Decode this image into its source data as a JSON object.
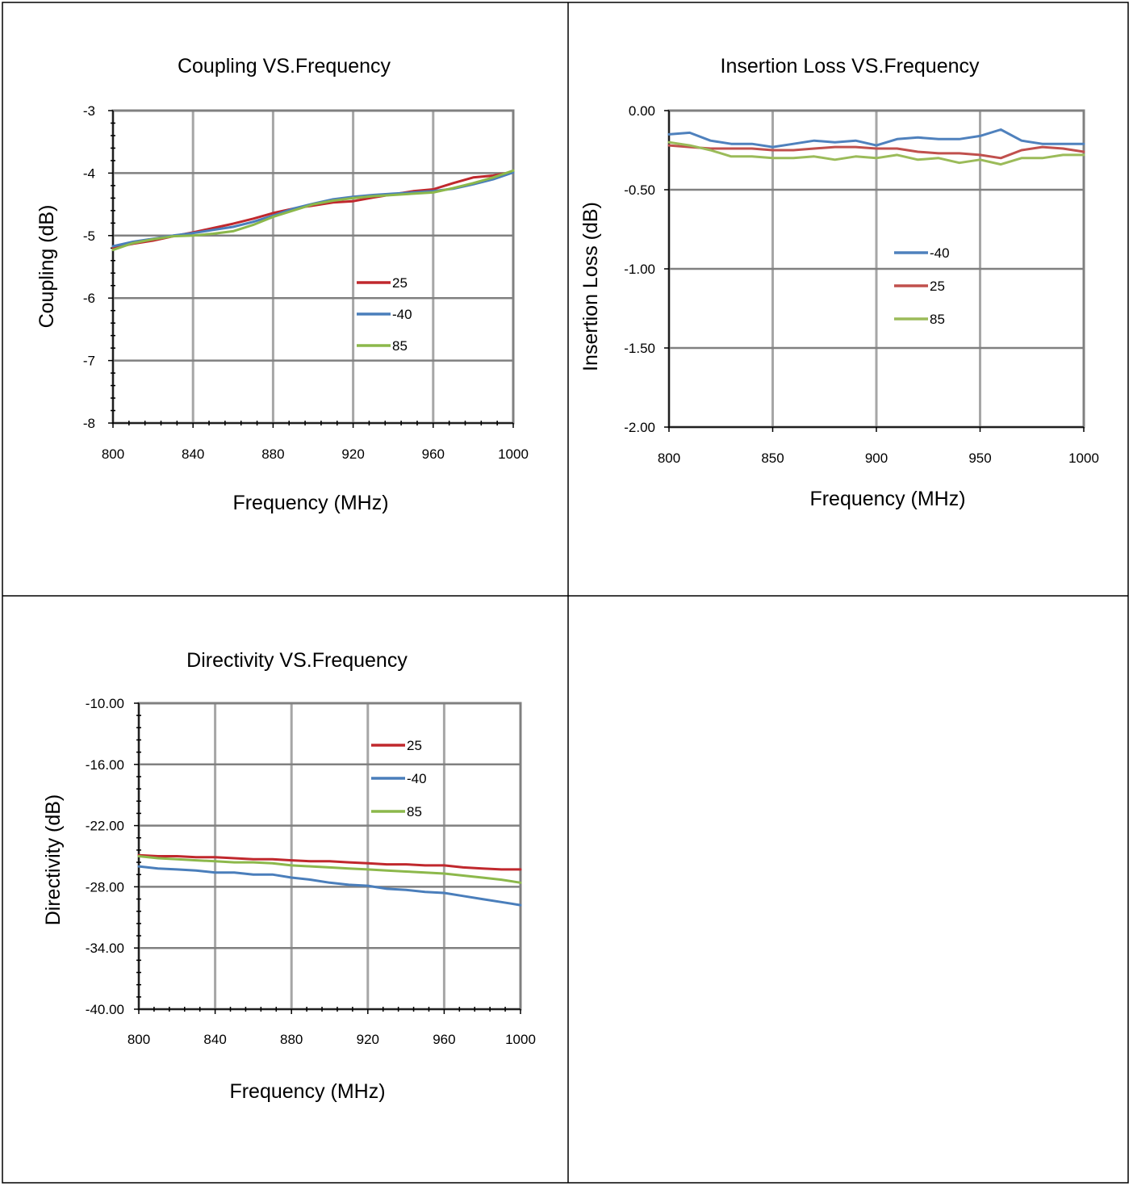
{
  "colors": {
    "red": "#c0282d",
    "blue": "#4a7ebb",
    "green": "#8cb84b",
    "ins_red": "#c0504d",
    "ins_blue": "#4f81bd",
    "ins_green": "#9bbb59"
  },
  "chart_data": [
    {
      "type": "line",
      "title": "Coupling VS.Frequency",
      "xlabel": "Frequency (MHz)",
      "ylabel": "Coupling  (dB)",
      "xlim": [
        800,
        1000
      ],
      "ylim": [
        -8,
        -3
      ],
      "xticks": [
        800,
        840,
        880,
        920,
        960,
        1000
      ],
      "xtick_labels": [
        "800",
        "840",
        "880",
        "920",
        "960",
        "1000"
      ],
      "yticks": [
        -8,
        -7,
        -6,
        -5,
        -4,
        -3
      ],
      "ytick_labels": [
        "-8",
        "-7",
        "-6",
        "-5",
        "-4",
        "-3"
      ],
      "x_grid": true,
      "y_grid": true,
      "legend_position": "center-right",
      "x": [
        800,
        810,
        820,
        830,
        840,
        850,
        860,
        870,
        880,
        890,
        900,
        910,
        920,
        930,
        940,
        950,
        960,
        970,
        980,
        990,
        1000
      ],
      "series": [
        {
          "name": "25",
          "color": "#c0282d",
          "values": [
            -5.2,
            -5.13,
            -5.08,
            -5.01,
            -4.95,
            -4.88,
            -4.81,
            -4.73,
            -4.64,
            -4.57,
            -4.52,
            -4.47,
            -4.45,
            -4.39,
            -4.34,
            -4.29,
            -4.26,
            -4.16,
            -4.07,
            -4.04,
            -3.98
          ]
        },
        {
          "name": "-40",
          "color": "#4a7ebb",
          "values": [
            -5.17,
            -5.1,
            -5.05,
            -5.0,
            -4.96,
            -4.91,
            -4.86,
            -4.78,
            -4.68,
            -4.57,
            -4.49,
            -4.42,
            -4.38,
            -4.35,
            -4.33,
            -4.31,
            -4.29,
            -4.25,
            -4.18,
            -4.1,
            -3.99
          ]
        },
        {
          "name": "85",
          "color": "#8cb84b",
          "values": [
            -5.23,
            -5.12,
            -5.06,
            -5.01,
            -5.0,
            -4.97,
            -4.93,
            -4.83,
            -4.7,
            -4.6,
            -4.5,
            -4.44,
            -4.4,
            -4.37,
            -4.35,
            -4.33,
            -4.31,
            -4.24,
            -4.16,
            -4.07,
            -3.96
          ]
        }
      ],
      "legend_order": [
        "25",
        "-40",
        "85"
      ]
    },
    {
      "type": "line",
      "title": "Insertion Loss VS.Frequency",
      "xlabel": "Frequency (MHz)",
      "ylabel": "Insertion Loss (dB)",
      "xlim": [
        800,
        1000
      ],
      "ylim": [
        -2.0,
        0.0
      ],
      "xticks": [
        800,
        850,
        900,
        950,
        1000
      ],
      "xtick_labels": [
        "800",
        "850",
        "900",
        "950",
        "1000"
      ],
      "yticks": [
        -2.0,
        -1.5,
        -1.0,
        -0.5,
        0.0
      ],
      "ytick_labels": [
        "-2.00",
        "-1.50",
        "-1.00",
        "-0.50",
        "0.00"
      ],
      "x_grid": true,
      "y_grid": true,
      "legend_position": "center-right",
      "x": [
        800,
        810,
        820,
        830,
        840,
        850,
        860,
        870,
        880,
        890,
        900,
        910,
        920,
        930,
        940,
        950,
        960,
        970,
        980,
        990,
        1000
      ],
      "series": [
        {
          "name": "-40",
          "color": "#4f81bd",
          "values": [
            -0.15,
            -0.14,
            -0.19,
            -0.21,
            -0.21,
            -0.23,
            -0.21,
            -0.19,
            -0.2,
            -0.19,
            -0.22,
            -0.18,
            -0.17,
            -0.18,
            -0.18,
            -0.16,
            -0.12,
            -0.19,
            -0.21,
            -0.21,
            -0.21
          ]
        },
        {
          "name": "25",
          "color": "#c0504d",
          "values": [
            -0.22,
            -0.23,
            -0.24,
            -0.24,
            -0.24,
            -0.25,
            -0.25,
            -0.24,
            -0.23,
            -0.23,
            -0.24,
            -0.24,
            -0.26,
            -0.27,
            -0.27,
            -0.28,
            -0.3,
            -0.25,
            -0.23,
            -0.24,
            -0.26
          ]
        },
        {
          "name": "85",
          "color": "#9bbb59",
          "values": [
            -0.2,
            -0.22,
            -0.25,
            -0.29,
            -0.29,
            -0.3,
            -0.3,
            -0.29,
            -0.31,
            -0.29,
            -0.3,
            -0.28,
            -0.31,
            -0.3,
            -0.33,
            -0.31,
            -0.34,
            -0.3,
            -0.3,
            -0.28,
            -0.28
          ]
        }
      ],
      "legend_order": [
        "-40",
        "25",
        "85"
      ]
    },
    {
      "type": "line",
      "title": "Directivity VS.Frequency",
      "xlabel": "Frequency (MHz)",
      "ylabel": "Directivity (dB)",
      "xlim": [
        800,
        1000
      ],
      "ylim": [
        -40,
        -10
      ],
      "xticks": [
        800,
        840,
        880,
        920,
        960,
        1000
      ],
      "xtick_labels": [
        "800",
        "840",
        "880",
        "920",
        "960",
        "1000"
      ],
      "yticks": [
        -40,
        -34,
        -28,
        -22,
        -16,
        -10
      ],
      "ytick_labels": [
        "-40.00",
        "-34.00",
        "-28.00",
        "-22.00",
        "-16.00",
        "-10.00"
      ],
      "x_grid": true,
      "y_grid": true,
      "legend_position": "top-right",
      "x": [
        800,
        810,
        820,
        830,
        840,
        850,
        860,
        870,
        880,
        890,
        900,
        910,
        920,
        930,
        940,
        950,
        960,
        970,
        980,
        990,
        1000
      ],
      "series": [
        {
          "name": "25",
          "color": "#c0282d",
          "values": [
            -24.9,
            -25.0,
            -25.0,
            -25.1,
            -25.1,
            -25.2,
            -25.3,
            -25.3,
            -25.4,
            -25.5,
            -25.5,
            -25.6,
            -25.7,
            -25.8,
            -25.8,
            -25.9,
            -25.9,
            -26.1,
            -26.2,
            -26.3,
            -26.3
          ]
        },
        {
          "name": "-40",
          "color": "#4a7ebb",
          "values": [
            -26.0,
            -26.2,
            -26.3,
            -26.4,
            -26.6,
            -26.6,
            -26.8,
            -26.8,
            -27.1,
            -27.3,
            -27.6,
            -27.8,
            -27.9,
            -28.2,
            -28.3,
            -28.5,
            -28.6,
            -28.9,
            -29.2,
            -29.5,
            -29.8
          ]
        },
        {
          "name": "85",
          "color": "#8cb84b",
          "values": [
            -25.0,
            -25.2,
            -25.3,
            -25.4,
            -25.5,
            -25.6,
            -25.6,
            -25.7,
            -25.9,
            -26.0,
            -26.1,
            -26.2,
            -26.3,
            -26.4,
            -26.5,
            -26.6,
            -26.7,
            -26.9,
            -27.1,
            -27.3,
            -27.6
          ]
        }
      ],
      "legend_order": [
        "25",
        "-40",
        "85"
      ]
    }
  ]
}
